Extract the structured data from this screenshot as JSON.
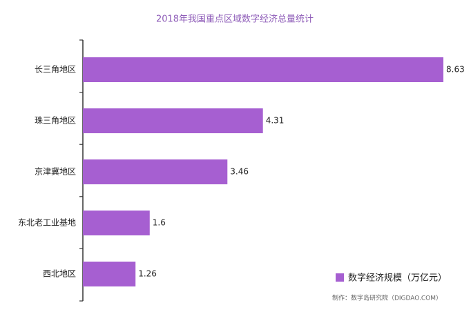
{
  "chart_data": {
    "type": "bar",
    "orientation": "horizontal",
    "title": "2018年我国重点区域数字经济总量统计",
    "categories": [
      "长三角地区",
      "珠三角地区",
      "京津冀地区",
      "东北老工业基地",
      "西北地区"
    ],
    "series": [
      {
        "name": "数字经济规模（万亿元）",
        "color": "#a65fd1",
        "values": [
          8.63,
          4.31,
          3.46,
          1.6,
          1.26
        ]
      }
    ],
    "note": "制作：数字岛研究院（DIGDAO.COM）",
    "legend": "bottom-right"
  }
}
